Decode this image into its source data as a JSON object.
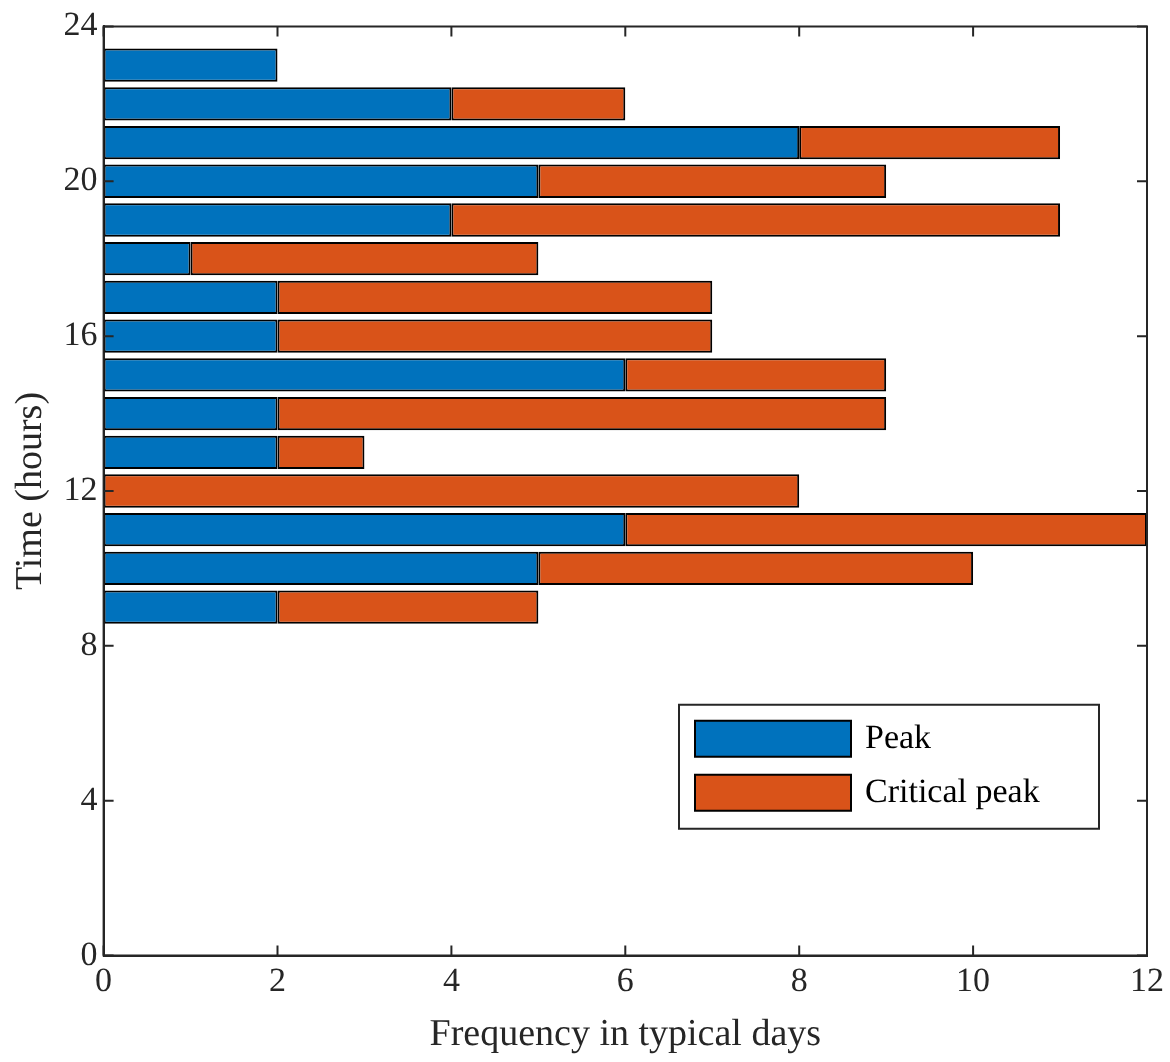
{
  "chart_data": {
    "type": "bar",
    "orientation": "horizontal",
    "stacked": true,
    "xlabel": "Frequency in typical days",
    "ylabel": "Time (hours)",
    "x": [
      23,
      22,
      21,
      20,
      19,
      18,
      17,
      16,
      15,
      14,
      13,
      12,
      11,
      10,
      9
    ],
    "series": [
      {
        "name": "Peak",
        "color": "#0072bd",
        "values": [
          2,
          4,
          8,
          5,
          4,
          1,
          2,
          2,
          6,
          2,
          2,
          null,
          6,
          5,
          2
        ]
      },
      {
        "name": "Critical peak",
        "color": "#d95319",
        "values": [
          null,
          2,
          3,
          4,
          7,
          4,
          5,
          5,
          3,
          7,
          1,
          8,
          6,
          5,
          3
        ]
      }
    ],
    "xlim": [
      0,
      12
    ],
    "xticks": [
      0,
      2,
      4,
      6,
      8,
      10,
      12
    ],
    "ylim": [
      0,
      24
    ],
    "yticks": [
      0,
      4,
      8,
      12,
      16,
      20,
      24
    ],
    "grid": false,
    "legend": "right"
  }
}
